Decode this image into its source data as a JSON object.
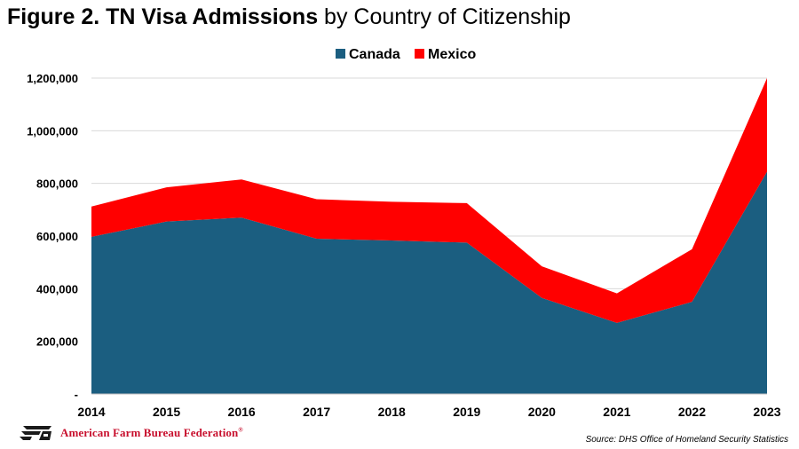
{
  "title_bold": "Figure 2. TN Visa Admissions",
  "title_rest": " by Country of Citizenship",
  "chart_data": {
    "type": "area",
    "stacked": true,
    "title": "Figure 2. TN Visa Admissions by Country of Citizenship",
    "xlabel": "",
    "ylabel": "",
    "categories": [
      "2014",
      "2015",
      "2016",
      "2017",
      "2018",
      "2019",
      "2020",
      "2021",
      "2022",
      "2023"
    ],
    "series": [
      {
        "name": "Canada",
        "color": "#1b5e80",
        "values": [
          597000,
          655000,
          670000,
          590000,
          583000,
          575000,
          365000,
          270000,
          350000,
          845000
        ]
      },
      {
        "name": "Mexico",
        "color": "#ff0000",
        "values": [
          115000,
          130000,
          145000,
          150000,
          147000,
          150000,
          120000,
          112000,
          200000,
          355000
        ]
      }
    ],
    "ylim": [
      0,
      1200000
    ],
    "yticks": [
      0,
      200000,
      400000,
      600000,
      800000,
      1000000,
      1200000
    ],
    "ytick_labels": [
      "-",
      "200,000",
      "400,000",
      "600,000",
      "800,000",
      "1,000,000",
      "1,200,000"
    ],
    "grid": true,
    "legend_position": "top-center"
  },
  "logo": {
    "text": "American Farm Bureau Federation",
    "mark": "FB",
    "trademark": "®",
    "icon": "fb-logo-icon"
  },
  "source": "Source: DHS Office of Homeland Security Statistics"
}
